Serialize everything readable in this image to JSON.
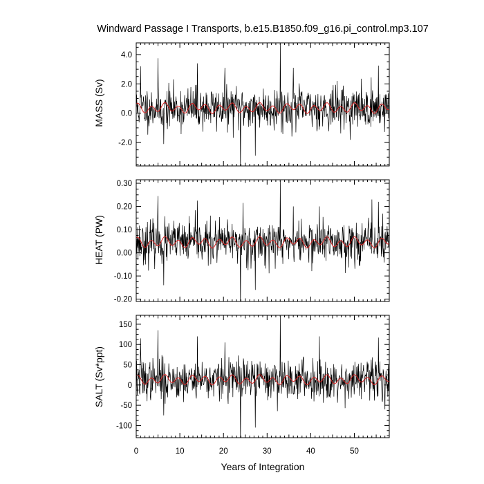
{
  "title": "Windward Passage I Transports, b.e15.B1850.f09_g16.pi_control.mp3.107",
  "colors": {
    "raw": "#000000",
    "smoothed": "#dd2222",
    "frame": "#000000"
  },
  "chart_data": [
    {
      "type": "line",
      "ylabel": "MASS (Sv)",
      "xlabel": "",
      "xlim": [
        0,
        58
      ],
      "ylim": [
        -3.6,
        4.8
      ],
      "yticks": [
        4.0,
        2.0,
        0.0,
        -2.0
      ],
      "ytick_labels": [
        "4.0",
        "2.0",
        "0.0",
        "-2.0"
      ],
      "ytick_minor": 0.5,
      "series": [
        {
          "name": "",
          "seed": 11,
          "mean": 0.35,
          "sd": 0.72,
          "spikes": [
            [
              1.0,
              3.2
            ],
            [
              5.0,
              3.75
            ],
            [
              6.3,
              -2.1
            ],
            [
              14.0,
              3.4
            ],
            [
              20.3,
              3.1
            ],
            [
              23.9,
              -3.9
            ],
            [
              27.3,
              -2.9
            ],
            [
              33.0,
              4.75
            ],
            [
              36.0,
              3.1
            ],
            [
              55.5,
              3.25
            ]
          ]
        },
        {
          "name": "",
          "mean": 0.35,
          "amp": 0.38
        }
      ]
    },
    {
      "type": "line",
      "ylabel": "HEAT (PW)",
      "xlabel": "",
      "xlim": [
        0,
        58
      ],
      "ylim": [
        -0.21,
        0.315
      ],
      "yticks": [
        0.3,
        0.2,
        0.1,
        0.0,
        -0.1,
        -0.2
      ],
      "ytick_labels": [
        "0.30",
        "0.20",
        "0.10",
        "0.00",
        "-0.10",
        "-0.20"
      ],
      "ytick_minor": 0.025,
      "series": [
        {
          "name": "",
          "seed": 23,
          "mean": 0.045,
          "sd": 0.045,
          "spikes": [
            [
              5.0,
              0.245
            ],
            [
              6.3,
              -0.14
            ],
            [
              14.0,
              0.225
            ],
            [
              23.9,
              -0.235
            ],
            [
              24.5,
              0.215
            ],
            [
              27.3,
              -0.16
            ],
            [
              33.0,
              0.31
            ],
            [
              36.0,
              0.2
            ],
            [
              42.0,
              0.2
            ],
            [
              54.0,
              0.23
            ],
            [
              55.5,
              0.22
            ]
          ]
        },
        {
          "name": "",
          "mean": 0.045,
          "amp": 0.025
        }
      ]
    },
    {
      "type": "line",
      "ylabel": "SALT (Sv*ppt)",
      "xlabel": "Years of Integration",
      "xlim": [
        0,
        58
      ],
      "ylim": [
        -130,
        172
      ],
      "yticks": [
        150,
        100,
        50,
        0,
        -50,
        -100
      ],
      "ytick_labels": [
        "150",
        "100",
        "50",
        "0",
        "-50",
        "-100"
      ],
      "ytick_minor": 12.5,
      "xticks": [
        0,
        10,
        20,
        30,
        40,
        50
      ],
      "xtick_labels": [
        "0",
        "10",
        "20",
        "30",
        "40",
        "50"
      ],
      "series": [
        {
          "name": "",
          "seed": 37,
          "mean": 13,
          "sd": 25,
          "spikes": [
            [
              1.0,
              115
            ],
            [
              5.0,
              135
            ],
            [
              6.3,
              -75
            ],
            [
              14.0,
              120
            ],
            [
              20.3,
              105
            ],
            [
              23.9,
              -140
            ],
            [
              27.3,
              -105
            ],
            [
              33.0,
              170
            ],
            [
              42.0,
              120
            ],
            [
              55.5,
              117
            ]
          ]
        },
        {
          "name": "",
          "mean": 13,
          "amp": 13
        }
      ]
    }
  ]
}
